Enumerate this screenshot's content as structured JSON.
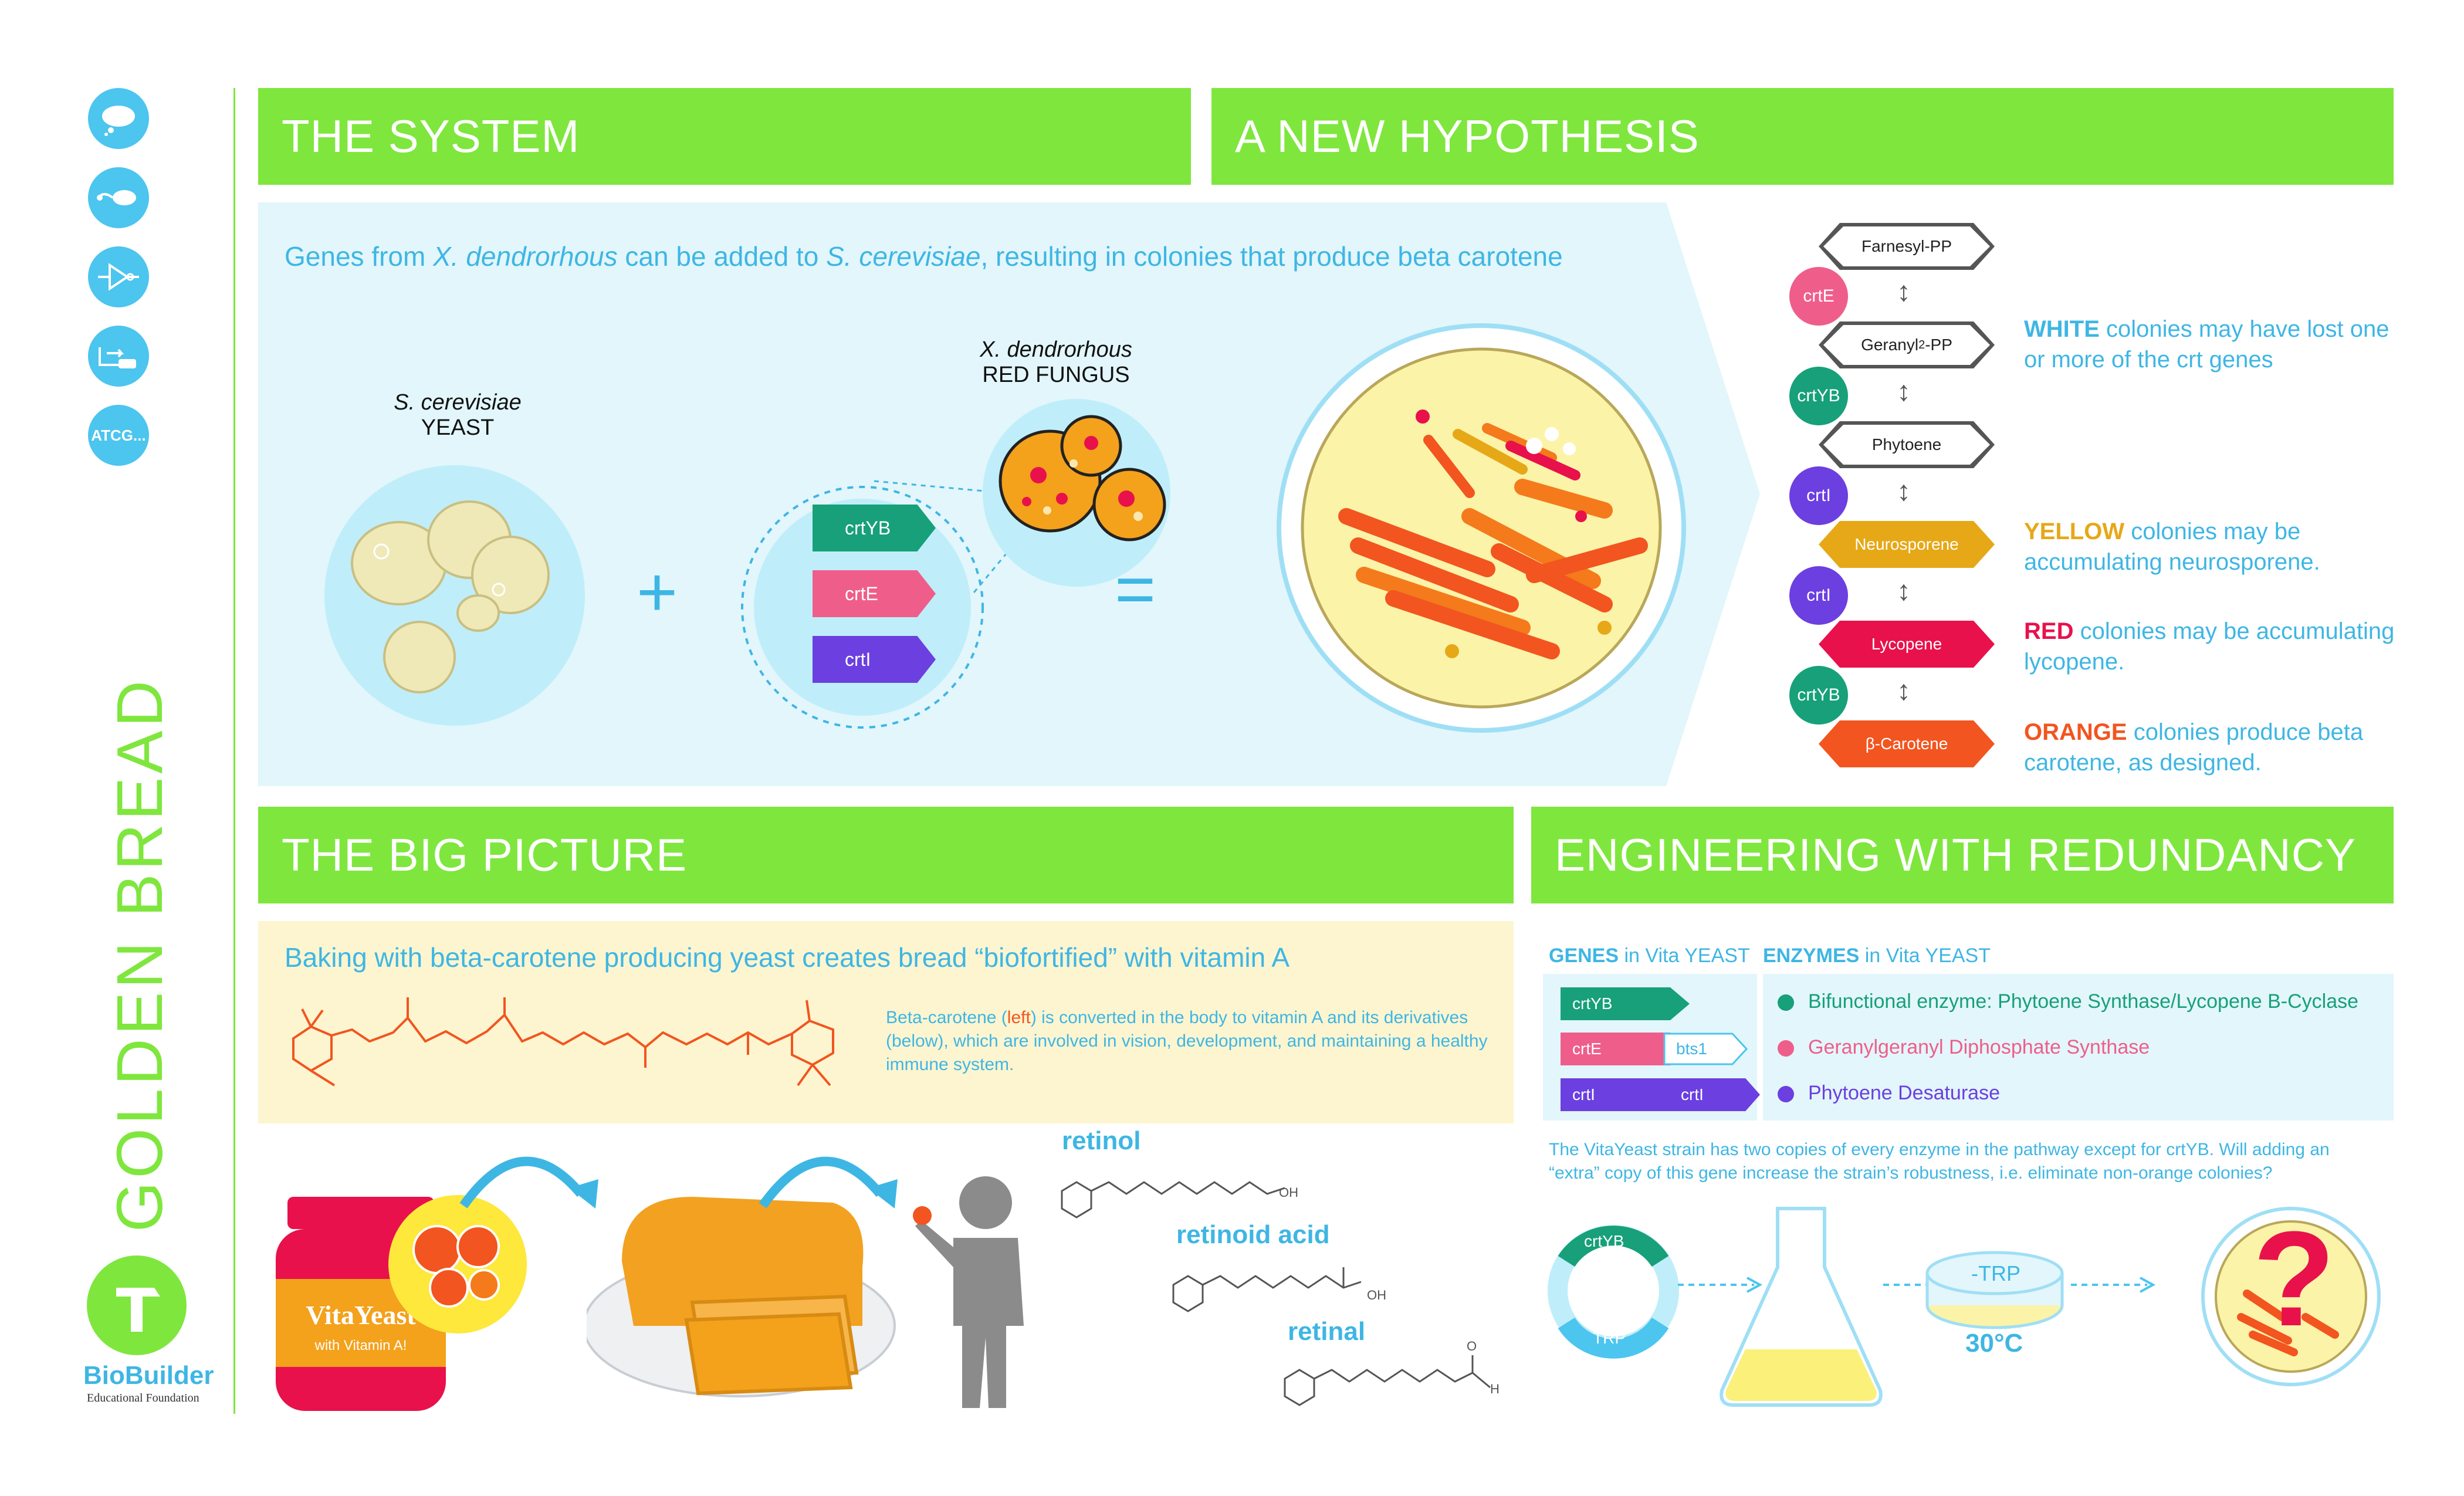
{
  "sidebar": {
    "title": "GOLDEN BREAD",
    "icons": [
      "thought-bubble-icon",
      "organism-icon",
      "circuit-icon",
      "plasmid-icon",
      "sequence-icon"
    ],
    "icon_texts": {
      "sequence": "ATCG..."
    },
    "logo_name": "BioBuilder",
    "logo_sub": "Educational Foundation"
  },
  "system": {
    "header": "THE SYSTEM",
    "subtitle_parts": [
      "Genes from ",
      "X. dendrorhous",
      " can be added to ",
      "S. cerevisiae",
      ", resulting in colonies that produce beta carotene"
    ],
    "yeast_label": [
      "S. cerevisiae",
      "YEAST"
    ],
    "fungus_label": [
      "X. dendrorhous",
      "RED FUNGUS"
    ],
    "genes": [
      "crtYB",
      "crtE",
      "crtI"
    ],
    "plus": "+",
    "equals": "="
  },
  "hypothesis": {
    "header": "A NEW HYPOTHESIS",
    "pathway": [
      {
        "type": "compound",
        "label": "Farnesyl-PP"
      },
      {
        "type": "enzyme",
        "label": "crtE"
      },
      {
        "type": "compound",
        "label": "Geranyl",
        "sub": "2",
        "suffix": "-PP"
      },
      {
        "type": "enzyme",
        "label": "crtYB"
      },
      {
        "type": "compound",
        "label": "Phytoene"
      },
      {
        "type": "enzyme",
        "label": "crtI"
      },
      {
        "type": "compound",
        "label": "Neurosporene"
      },
      {
        "type": "enzyme",
        "label": "crtI"
      },
      {
        "type": "compound",
        "label": "Lycopene"
      },
      {
        "type": "enzyme",
        "label": "crtYB"
      },
      {
        "type": "compound",
        "label": "β-Carotene"
      }
    ],
    "arrow": "↕",
    "notes": [
      {
        "key": "WHITE",
        "text": " colonies may have lost one or more of the crt genes",
        "color": "#3eb6e4"
      },
      {
        "key": "YELLOW",
        "text": " colonies may be accumulating neurosporene.",
        "color": "#e6a817"
      },
      {
        "key": "RED",
        "text": " colonies may be accumulating lycopene.",
        "color": "#e8114b"
      },
      {
        "key": "ORANGE",
        "text": " colonies produce beta carotene, as designed.",
        "color": "#f2551f"
      }
    ]
  },
  "big_picture": {
    "header": "THE BIG PICTURE",
    "subtitle": "Baking with beta-carotene producing yeast creates bread “biofortified” with vitamin A",
    "desc_parts": [
      "Beta-carotene (",
      "left",
      ") is converted in the body to vitamin A and its derivatives (below), which are involved in vision, development, and maintaining a healthy immune system."
    ],
    "jar_label": "VitaYeast",
    "jar_sub": "with Vitamin A!",
    "molecules": [
      "retinol",
      "retinoid acid",
      "retinal"
    ],
    "atoms": {
      "oh1": "OH",
      "oh2": "OH",
      "o": "O",
      "h": "H"
    }
  },
  "redundancy": {
    "header": "ENGINEERING WITH REDUNDANCY",
    "genes_title": [
      "GENES",
      " in Vita YEAST"
    ],
    "enzymes_title": [
      "ENZYMES",
      " in Vita YEAST"
    ],
    "gene_tags": [
      "crtYB",
      "crtE",
      "bts1",
      "crtI",
      "crtI"
    ],
    "enzymes": [
      {
        "label": "Bifunctional enzyme: Phytoene Synthase/Lycopene B-Cyclase",
        "color": "#17a079"
      },
      {
        "label": "Geranylgeranyl Diphosphate Synthase",
        "color": "#ef5e8a"
      },
      {
        "label": "Phytoene Desaturase",
        "color": "#6c3fe0"
      }
    ],
    "question": "The VitaYeast strain has two copies of every enzyme in the pathway except for crtYB. Will adding an “extra” copy of this gene increase the strain’s robustness, i.e. eliminate non-orange colonies?",
    "plasmid_tags": [
      "crtYB",
      "TRP"
    ],
    "plate_label": "-TRP",
    "temperature": "30°C",
    "question_mark": "?"
  }
}
